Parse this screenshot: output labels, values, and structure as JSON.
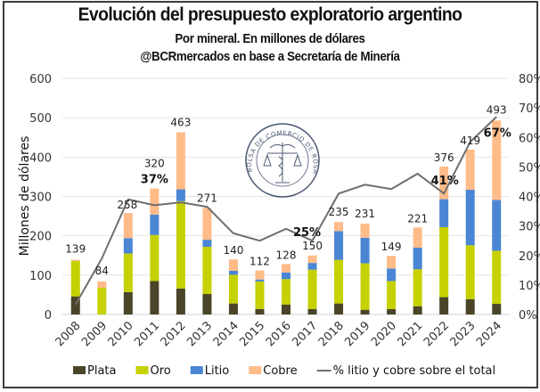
{
  "chart_data": {
    "type": "bar",
    "stacked": true,
    "title": "Evolución del presupuesto exploratorio argentino",
    "subtitle": "Por mineral. En millones de dólares",
    "source": "@BCRmercados en base a Secretaría de Minería",
    "watermark": "BOLSA DE COMERCIO DE ROSARIO",
    "categories": [
      "2008",
      "2009",
      "2010",
      "2011",
      "2012",
      "2013",
      "2014",
      "2015",
      "2016",
      "2017",
      "2018",
      "2019",
      "2020",
      "2021",
      "2022",
      "2023",
      "2024"
    ],
    "series": [
      {
        "name": "Plata",
        "color": "#4a4529",
        "values": [
          46,
          0,
          57,
          85,
          66,
          52,
          28,
          14,
          25,
          14,
          28,
          12,
          14,
          21,
          44,
          39,
          27
        ]
      },
      {
        "name": "Oro",
        "color": "#c5d100",
        "values": [
          90,
          68,
          98,
          117,
          222,
          120,
          73,
          70,
          65,
          100,
          111,
          118,
          71,
          94,
          178,
          137,
          135
        ]
      },
      {
        "name": "Litio",
        "color": "#4a86d4",
        "values": [
          0,
          0,
          39,
          52,
          30,
          18,
          10,
          5,
          17,
          17,
          73,
          65,
          32,
          55,
          71,
          141,
          129
        ]
      },
      {
        "name": "Cobre",
        "color": "#ffbb88",
        "values": [
          3,
          16,
          64,
          66,
          145,
          81,
          29,
          23,
          21,
          19,
          23,
          36,
          32,
          51,
          83,
          102,
          202
        ]
      }
    ],
    "totals": [
      139,
      84,
      258,
      320,
      463,
      271,
      140,
      112,
      128,
      150,
      235,
      231,
      149,
      221,
      376,
      419,
      493
    ],
    "line_series": {
      "name": "% litio y cobre sobre el total",
      "color": "#6e6e6e",
      "axis": "right",
      "values": [
        3.4,
        19,
        39,
        37,
        38,
        36.5,
        27.5,
        25,
        29,
        25,
        41,
        44,
        42.5,
        47.7,
        41,
        58.5,
        67
      ]
    },
    "pct_labels": [
      {
        "category": "2011",
        "text": "37%"
      },
      {
        "category": "2017",
        "text": "25%"
      },
      {
        "category": "2022",
        "text": "41%"
      },
      {
        "category": "2024",
        "text": "67%"
      }
    ],
    "ylabel": "Millones de dólares",
    "ylim": [
      0,
      600
    ],
    "yticks": [
      0,
      100,
      200,
      300,
      400,
      500,
      600
    ],
    "y2lim": [
      0,
      80
    ],
    "y2ticks": [
      "0%",
      "10%",
      "20%",
      "30%",
      "40%",
      "50%",
      "60%",
      "70%",
      "80%"
    ],
    "grid": true,
    "legend_position": "bottom"
  }
}
